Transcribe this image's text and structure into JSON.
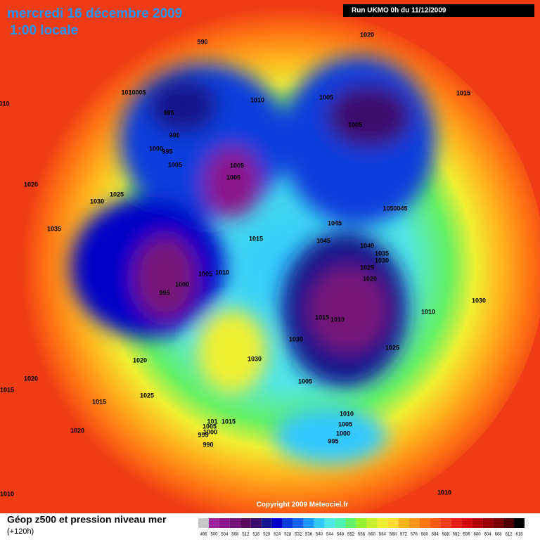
{
  "header": {
    "title": "mercredi 16 décembre 2009",
    "subtitle": "1:00 locale",
    "run": "Run UKMO 0h du 11/12/2009"
  },
  "copyright": "Copyright 2009 Meteociel.fr",
  "legend": {
    "title": "Géop z500 et pression niveau mer",
    "lead": "(+120h)",
    "scale": [
      496,
      500,
      504,
      508,
      512,
      516,
      520,
      524,
      528,
      532,
      536,
      540,
      544,
      548,
      552,
      556,
      560,
      564,
      568,
      572,
      576,
      580,
      584,
      588,
      592,
      596,
      600,
      604,
      608,
      612,
      616
    ],
    "colors": [
      "#c8c8c8",
      "#a020a0",
      "#8c148c",
      "#781478",
      "#5a0a5a",
      "#3c0a6e",
      "#14148c",
      "#0000c8",
      "#0a3cdc",
      "#1464f0",
      "#1e96ff",
      "#32c8ff",
      "#50e6e6",
      "#50f0b4",
      "#64f064",
      "#96f032",
      "#c8f032",
      "#f0f032",
      "#ffdc32",
      "#ffb41e",
      "#ff961e",
      "#ff7814",
      "#ff5a14",
      "#f03c14",
      "#e61e14",
      "#d20a0a",
      "#b40000",
      "#960000",
      "#780000",
      "#500000",
      "#000000"
    ]
  },
  "pressure_labels": [
    "990",
    "1020",
    "1010005",
    "1010",
    "1005",
    "1015",
    "985",
    "1005",
    "990",
    "1000",
    "995",
    "1005",
    "1005",
    "1005",
    "1020",
    "1025",
    "1030",
    "1050045",
    "1045",
    "1035",
    "1045",
    "1015",
    "1040",
    "1035",
    "1030",
    "1025",
    "1005",
    "1010",
    "1020",
    "1000",
    "995",
    "1015",
    "1010",
    "1010",
    "1030",
    "1030",
    "1025",
    "1030",
    "1020",
    "1020",
    "1005",
    "1015",
    "1025",
    "1015",
    "1010",
    "1005",
    "1015",
    "101",
    "1005",
    "1000",
    "995",
    "1000",
    "995",
    "990",
    "1020",
    "1010",
    "1010",
    "010"
  ]
}
